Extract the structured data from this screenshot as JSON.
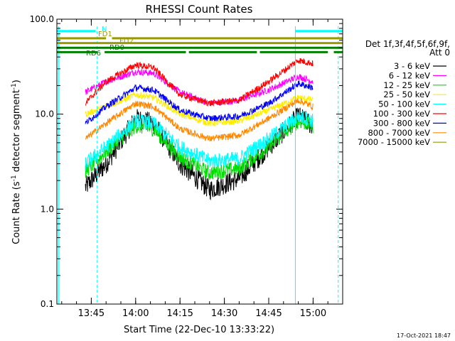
{
  "chart_data": {
    "type": "line",
    "title": "RHESSI Count Rates",
    "xlabel": "Start Time (22-Dec-10 13:33:22)",
    "ylabel_parts": [
      "Count Rate (s",
      "-1",
      " detector segment",
      "-1",
      ")"
    ],
    "y_scale": "log",
    "ylim": [
      0.1,
      100.0
    ],
    "xlim": [
      "13:33:22",
      "15:10:00"
    ],
    "x_ticks": [
      "13:45",
      "14:00",
      "14:15",
      "14:30",
      "14:45",
      "15:00"
    ],
    "y_ticks": [
      "0.1",
      "1.0",
      "10.0",
      "100.0"
    ],
    "legend_title": [
      "Det 1f,3f,4f,5f,6f,9f,",
      "Att 0"
    ],
    "series": [
      {
        "name": "3 - 6 keV",
        "color": "#000000",
        "points": [
          [
            "13:43",
            1.7
          ],
          [
            "13:50",
            3.0
          ],
          [
            "14:00",
            9.0
          ],
          [
            "14:06",
            8.0
          ],
          [
            "14:15",
            3.0
          ],
          [
            "14:25",
            1.6
          ],
          [
            "14:35",
            2.1
          ],
          [
            "14:45",
            4.5
          ],
          [
            "14:55",
            9.5
          ],
          [
            "15:00",
            7.5
          ]
        ]
      },
      {
        "name": "6 - 12 keV",
        "color": "#ff00ff",
        "points": [
          [
            "13:43",
            17
          ],
          [
            "13:50",
            22
          ],
          [
            "14:00",
            28
          ],
          [
            "14:06",
            27
          ],
          [
            "14:15",
            17
          ],
          [
            "14:25",
            13
          ],
          [
            "14:35",
            14
          ],
          [
            "14:45",
            18
          ],
          [
            "14:55",
            25
          ],
          [
            "15:00",
            22
          ]
        ]
      },
      {
        "name": "12 - 25 keV",
        "color": "#00dd00",
        "points": [
          [
            "13:43",
            2.5
          ],
          [
            "13:50",
            4.0
          ],
          [
            "14:00",
            7.5
          ],
          [
            "14:06",
            7.0
          ],
          [
            "14:15",
            3.5
          ],
          [
            "14:25",
            2.4
          ],
          [
            "14:35",
            2.7
          ],
          [
            "14:45",
            4.5
          ],
          [
            "14:55",
            8.5
          ],
          [
            "15:00",
            7.5
          ]
        ]
      },
      {
        "name": "25 - 50 keV",
        "color": "#ffee00",
        "points": [
          [
            "13:43",
            10
          ],
          [
            "13:50",
            12
          ],
          [
            "14:00",
            16
          ],
          [
            "14:06",
            15
          ],
          [
            "14:15",
            10
          ],
          [
            "14:25",
            8
          ],
          [
            "14:35",
            8.5
          ],
          [
            "14:45",
            11
          ],
          [
            "14:55",
            15
          ],
          [
            "15:00",
            14
          ]
        ]
      },
      {
        "name": "50 - 100 keV",
        "color": "#00ffff",
        "points": [
          [
            "13:43",
            3.0
          ],
          [
            "13:50",
            4.5
          ],
          [
            "14:00",
            8.5
          ],
          [
            "14:06",
            8.0
          ],
          [
            "14:15",
            4.5
          ],
          [
            "14:25",
            3.2
          ],
          [
            "14:35",
            3.4
          ],
          [
            "14:45",
            5.5
          ],
          [
            "14:55",
            9.5
          ],
          [
            "15:00",
            8.5
          ]
        ]
      },
      {
        "name": "100 - 300 keV",
        "color": "#ff0000",
        "points": [
          [
            "13:43",
            13
          ],
          [
            "13:50",
            22
          ],
          [
            "14:00",
            33
          ],
          [
            "14:06",
            31
          ],
          [
            "14:15",
            16
          ],
          [
            "14:25",
            13
          ],
          [
            "14:35",
            14
          ],
          [
            "14:45",
            22
          ],
          [
            "14:55",
            37
          ],
          [
            "15:00",
            34
          ]
        ]
      },
      {
        "name": "300 - 800 keV",
        "color": "#0000ff",
        "points": [
          [
            "13:43",
            8.0
          ],
          [
            "13:50",
            12
          ],
          [
            "14:00",
            19
          ],
          [
            "14:06",
            18
          ],
          [
            "14:15",
            11
          ],
          [
            "14:25",
            9
          ],
          [
            "14:35",
            9.5
          ],
          [
            "14:45",
            13
          ],
          [
            "14:55",
            21
          ],
          [
            "15:00",
            19
          ]
        ]
      },
      {
        "name": "800 - 7000 keV",
        "color": "#ff8800",
        "points": [
          [
            "13:43",
            5.5
          ],
          [
            "13:50",
            8.0
          ],
          [
            "14:00",
            13
          ],
          [
            "14:06",
            12
          ],
          [
            "14:15",
            7.0
          ],
          [
            "14:25",
            5.5
          ],
          [
            "14:35",
            6.0
          ],
          [
            "14:45",
            9.0
          ],
          [
            "14:55",
            14
          ],
          [
            "15:00",
            12
          ]
        ]
      },
      {
        "name": "7000 - 15000 keV",
        "color": "#999900",
        "points": []
      }
    ],
    "status_bars": [
      {
        "label": "N",
        "color": "#00ffff",
        "y": 75,
        "segments": [
          [
            "13:33:22",
            "13:46:30"
          ],
          [
            "14:54:00",
            "15:10:00"
          ]
        ]
      },
      {
        "label": "FD1",
        "color": "#999900",
        "y": 63,
        "segments": [
          [
            "13:33:22",
            "13:50:00"
          ],
          [
            "13:52:00",
            "15:10:00"
          ]
        ]
      },
      {
        "label": "FD2",
        "color": "#999900",
        "y": 56,
        "segments": [
          [
            "13:33:22",
            "15:10:00"
          ]
        ]
      },
      {
        "label": "RD0",
        "color": "#008000",
        "y": 50,
        "segments": [
          [
            "13:33:22",
            "15:10:00"
          ]
        ]
      },
      {
        "label": "RD6",
        "color": "#008000",
        "y": 45,
        "segments": [
          [
            "13:33:22",
            "13:47:00"
          ],
          [
            "13:49:30",
            "14:17:00"
          ],
          [
            "14:18:00",
            "14:41:00"
          ],
          [
            "14:42:00",
            "15:05:00"
          ],
          [
            "15:07:00",
            "15:10:00"
          ]
        ]
      }
    ],
    "vertical_markers": [
      {
        "time": "13:34:00",
        "color": "#00ffff",
        "style": "solid"
      },
      {
        "time": "13:47:00",
        "color": "#00ffff",
        "style": "dashed"
      },
      {
        "time": "14:54:00",
        "color": "#00ffff",
        "style": "solid"
      },
      {
        "time": "15:08:30",
        "color": "#00ffff",
        "style": "dashed"
      }
    ],
    "legend_placement": "right",
    "grid": false
  },
  "footer": {
    "timestamp": "17-Oct-2021 18:47"
  }
}
